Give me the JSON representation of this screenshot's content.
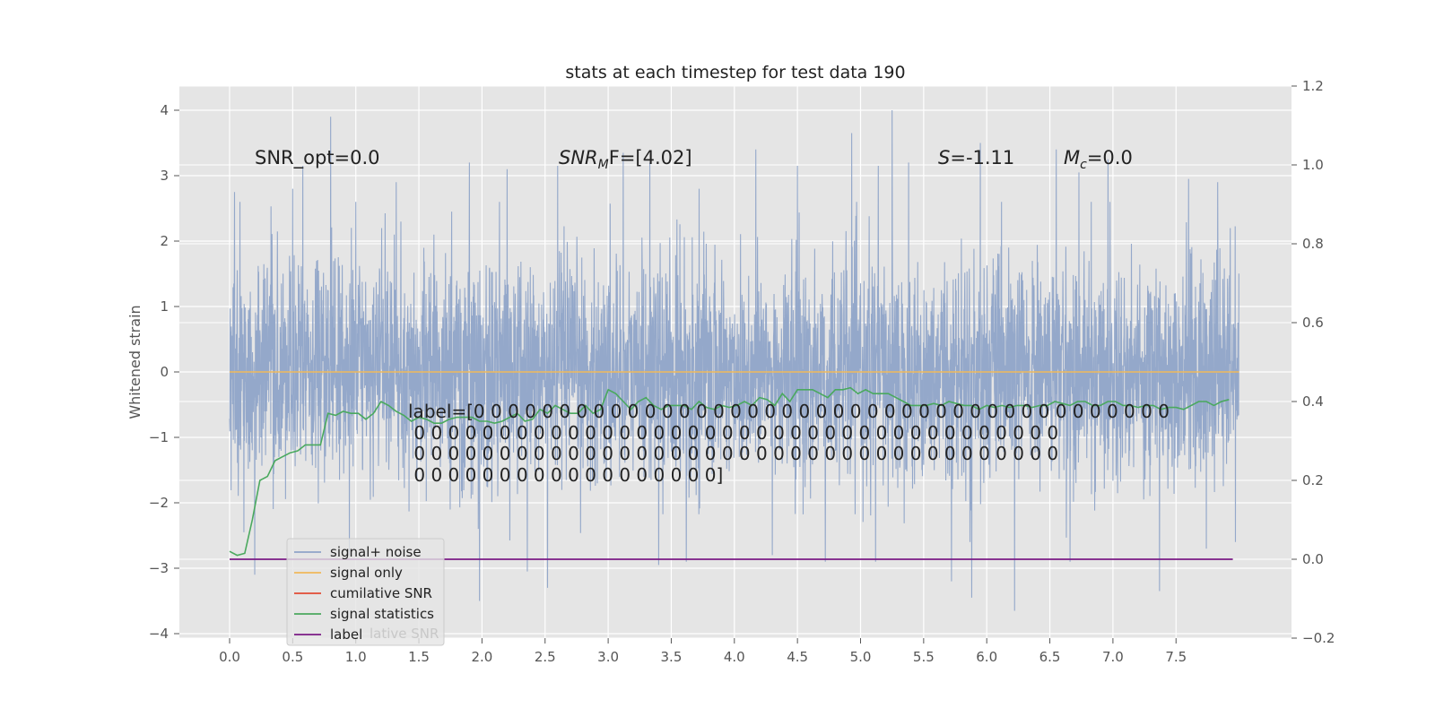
{
  "chart_data": {
    "type": "line",
    "title": "stats at each timestep for test data 190",
    "ylabel": "Whitened strain",
    "xlabel": "",
    "xlim": [
      -0.36,
      8.44
    ],
    "ylim": [
      -4.05,
      4.4
    ],
    "y2lim": [
      -0.2,
      1.2
    ],
    "xticks": [
      "0.0",
      "0.5",
      "1.0",
      "1.5",
      "2.0",
      "2.5",
      "3.0",
      "3.5",
      "4.0",
      "4.5",
      "5.0",
      "5.5",
      "6.0",
      "6.5",
      "7.0",
      "7.5"
    ],
    "xtick_values": [
      0,
      0.5,
      1.0,
      1.5,
      2.0,
      2.5,
      3.0,
      3.5,
      4.0,
      4.5,
      5.0,
      5.5,
      6.0,
      6.5,
      7.0,
      7.5
    ],
    "yticks": [
      "−4",
      "−3",
      "−2",
      "−1",
      "0",
      "1",
      "2",
      "3",
      "4"
    ],
    "ytick_values": [
      -4,
      -3,
      -2,
      -1,
      0,
      1,
      2,
      3,
      4
    ],
    "y2ticks": [
      "−0.2",
      "0.0",
      "0.2",
      "0.4",
      "0.6",
      "0.8",
      "1.0",
      "1.2"
    ],
    "y2tick_values": [
      -0.2,
      0.0,
      0.2,
      0.4,
      0.6,
      0.8,
      1.0,
      1.2
    ],
    "grid": true,
    "legend_position": "lower-left",
    "annotations": {
      "snr_opt": "SNR_opt=0.0",
      "snr_mf": "SNR",
      "snr_mf_sub": "M",
      "snr_mf_rest": "F=[4.02]",
      "s_stat_var": "S",
      "s_stat_val": "=-1.11",
      "mc_var": "M",
      "mc_sub": "c",
      "mc_val": "=0.0",
      "label_lines": [
        "label=[0 0 0 0 0 0 0 0 0 0 0 0 0 0 0 0 0 0 0 0 0 0 0 0 0 0 0 0 0 0 0 0 0 0 0 0 0 0 0 0 0",
        " 0 0 0 0 0 0 0 0 0 0 0 0 0 0 0 0 0 0 0 0 0 0 0 0 0 0 0 0 0 0 0 0 0 0 0 0 0 0",
        " 0 0 0 0 0 0 0 0 0 0 0 0 0 0 0 0 0 0 0 0 0 0 0 0 0 0 0 0 0 0 0 0 0 0 0 0 0 0",
        " 0 0 0 0 0 0 0 0 0 0 0 0 0 0 0 0 0 0]"
      ]
    },
    "series": [
      {
        "name": "signal+ noise",
        "axis": "left",
        "color": "#8fa4c8",
        "t_range": [
          0,
          8.0
        ],
        "sample_rate": 512,
        "noise_std": 0.82,
        "peaks": [
          [
            0.04,
            2.75
          ],
          [
            0.2,
            3.1
          ],
          [
            0.5,
            2.8
          ],
          [
            0.58,
            3.15
          ],
          [
            0.8,
            3.9
          ],
          [
            1.0,
            2.6
          ],
          [
            1.32,
            2.9
          ],
          [
            1.62,
            2.1
          ],
          [
            1.76,
            2.45
          ],
          [
            1.9,
            3.2
          ],
          [
            2.2,
            3.1
          ],
          [
            2.6,
            3.15
          ],
          [
            3.12,
            3.35
          ],
          [
            3.33,
            3.2
          ],
          [
            3.72,
            2.8
          ],
          [
            4.17,
            3.4
          ],
          [
            4.5,
            3.15
          ],
          [
            4.93,
            3.65
          ],
          [
            5.14,
            3.15
          ],
          [
            5.25,
            4.0
          ],
          [
            5.38,
            3.2
          ],
          [
            5.95,
            3.5
          ],
          [
            6.55,
            3.4
          ],
          [
            6.73,
            3.05
          ],
          [
            6.96,
            3.25
          ],
          [
            7.6,
            2.95
          ],
          [
            7.83,
            2.9
          ],
          [
            0.2,
            -3.1
          ],
          [
            0.95,
            -2.8
          ],
          [
            1.98,
            -3.5
          ],
          [
            2.36,
            -3.05
          ],
          [
            2.52,
            -3.3
          ],
          [
            3.4,
            -2.95
          ],
          [
            3.62,
            -2.9
          ],
          [
            4.3,
            -2.8
          ],
          [
            4.72,
            -2.9
          ],
          [
            5.12,
            -2.9
          ],
          [
            5.72,
            -3.2
          ],
          [
            5.88,
            -3.45
          ],
          [
            6.22,
            -3.65
          ],
          [
            6.66,
            -2.9
          ],
          [
            7.37,
            -3.35
          ],
          [
            7.74,
            -2.7
          ],
          [
            7.97,
            -2.6
          ]
        ],
        "values": []
      },
      {
        "name": "signal only",
        "axis": "left",
        "color": "#f0b95a",
        "x": [
          0,
          8.0
        ],
        "values": [
          0,
          0
        ]
      },
      {
        "name": "cumilative SNR",
        "axis": "right",
        "color": "#e24a33",
        "x": [],
        "values": []
      },
      {
        "name": "signal statistics",
        "axis": "right",
        "color": "#4aa95e",
        "x": [
          0.0,
          0.06,
          0.12,
          0.18,
          0.24,
          0.3,
          0.36,
          0.42,
          0.48,
          0.54,
          0.6,
          0.66,
          0.72,
          0.78,
          0.84,
          0.9,
          0.96,
          1.02,
          1.08,
          1.14,
          1.2,
          1.26,
          1.32,
          1.38,
          1.44,
          1.5,
          1.56,
          1.62,
          1.68,
          1.74,
          1.8,
          1.86,
          1.92,
          1.98,
          2.04,
          2.1,
          2.16,
          2.22,
          2.28,
          2.34,
          2.4,
          2.46,
          2.52,
          2.58,
          2.64,
          2.7,
          2.76,
          2.82,
          2.88,
          2.94,
          3.0,
          3.06,
          3.12,
          3.18,
          3.24,
          3.3,
          3.36,
          3.42,
          3.48,
          3.54,
          3.6,
          3.66,
          3.72,
          3.78,
          3.84,
          3.9,
          3.96,
          4.02,
          4.08,
          4.14,
          4.2,
          4.26,
          4.32,
          4.38,
          4.44,
          4.5,
          4.56,
          4.62,
          4.68,
          4.74,
          4.8,
          4.86,
          4.92,
          4.98,
          5.04,
          5.1,
          5.16,
          5.22,
          5.28,
          5.34,
          5.4,
          5.46,
          5.52,
          5.58,
          5.64,
          5.7,
          5.76,
          5.82,
          5.88,
          5.94,
          6.0,
          6.06,
          6.12,
          6.18,
          6.24,
          6.3,
          6.36,
          6.42,
          6.48,
          6.54,
          6.6,
          6.66,
          6.72,
          6.78,
          6.84,
          6.9,
          6.96,
          7.02,
          7.08,
          7.14,
          7.2,
          7.26,
          7.32,
          7.38,
          7.44,
          7.5,
          7.56,
          7.62,
          7.68,
          7.74,
          7.8,
          7.86,
          7.92
        ],
        "values": [
          0.02,
          0.01,
          0.015,
          0.1,
          0.2,
          0.21,
          0.25,
          0.26,
          0.27,
          0.275,
          0.29,
          0.29,
          0.29,
          0.37,
          0.365,
          0.375,
          0.37,
          0.37,
          0.355,
          0.37,
          0.4,
          0.39,
          0.375,
          0.365,
          0.35,
          0.36,
          0.355,
          0.345,
          0.345,
          0.355,
          0.36,
          0.36,
          0.36,
          0.35,
          0.35,
          0.345,
          0.35,
          0.36,
          0.37,
          0.35,
          0.355,
          0.38,
          0.37,
          0.39,
          0.38,
          0.37,
          0.37,
          0.39,
          0.37,
          0.38,
          0.43,
          0.42,
          0.4,
          0.38,
          0.4,
          0.41,
          0.39,
          0.38,
          0.39,
          0.39,
          0.39,
          0.38,
          0.4,
          0.385,
          0.38,
          0.39,
          0.385,
          0.39,
          0.4,
          0.39,
          0.41,
          0.405,
          0.39,
          0.42,
          0.4,
          0.43,
          0.43,
          0.43,
          0.42,
          0.41,
          0.43,
          0.43,
          0.435,
          0.42,
          0.43,
          0.42,
          0.42,
          0.42,
          0.41,
          0.4,
          0.39,
          0.39,
          0.39,
          0.395,
          0.39,
          0.4,
          0.395,
          0.39,
          0.39,
          0.38,
          0.39,
          0.385,
          0.39,
          0.385,
          0.39,
          0.39,
          0.385,
          0.39,
          0.39,
          0.4,
          0.395,
          0.39,
          0.4,
          0.4,
          0.39,
          0.39,
          0.4,
          0.4,
          0.39,
          0.39,
          0.385,
          0.39,
          0.39,
          0.38,
          0.385,
          0.385,
          0.38,
          0.39,
          0.4,
          0.4,
          0.39,
          0.4,
          0.405
        ],
        "values_note": "right axis"
      },
      {
        "name": "label",
        "axis": "right",
        "color": "#7b1a85",
        "x": [
          0,
          7.95
        ],
        "values": [
          0,
          0
        ]
      }
    ]
  },
  "ghost_legend_text": "lative SNR"
}
